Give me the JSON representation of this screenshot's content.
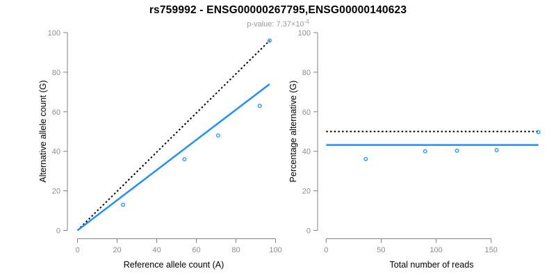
{
  "header": {
    "title": "rs759992 - ENSG00000267795,ENSG00000140623",
    "pvalue_text": "p-value: 7.37×10",
    "pvalue_exponent": "-4"
  },
  "colors": {
    "accent_blue": "#1E90FF",
    "dotted_black": "#000000",
    "axis_line_gray": "#808080",
    "tick_label_gray": "#8c8c8c",
    "axis_title_black": "#000000",
    "subtitle_gray": "#9a9a9a"
  },
  "chart_data": [
    {
      "type": "scatter",
      "name": "allele-counts-plot",
      "xlabel": "Reference allele count (A)",
      "ylabel": "Alternative allele count (G)",
      "xlim": [
        0,
        100
      ],
      "ylim": [
        0,
        100
      ],
      "xticks": [
        0,
        20,
        40,
        60,
        80,
        100
      ],
      "yticks": [
        0,
        20,
        40,
        60,
        80,
        100
      ],
      "grid": false,
      "legend": null,
      "marker": "open-circle",
      "points": [
        [
          23,
          13
        ],
        [
          54,
          36
        ],
        [
          71,
          48
        ],
        [
          92,
          63
        ],
        [
          97,
          96
        ]
      ],
      "lines": [
        {
          "name": "identity-line",
          "style": "dotted",
          "color": "#000000",
          "from": [
            0,
            0
          ],
          "to": [
            97,
            96
          ]
        },
        {
          "name": "fit-line",
          "style": "solid",
          "color": "#1E90FF",
          "from": [
            0,
            0
          ],
          "to": [
            97,
            74
          ]
        }
      ]
    },
    {
      "type": "scatter",
      "name": "percentage-alternative-plot",
      "xlabel": "Total number of reads",
      "ylabel": "Percentage alternative (G)",
      "xlim": [
        0,
        193
      ],
      "ylim": [
        0,
        100
      ],
      "xticks": [
        0,
        50,
        100,
        150
      ],
      "yticks": [
        0,
        20,
        40,
        60,
        80,
        100
      ],
      "grid": false,
      "legend": null,
      "marker": "open-circle",
      "points": [
        [
          36,
          36.1
        ],
        [
          90,
          40
        ],
        [
          119,
          40.3
        ],
        [
          155,
          40.6
        ],
        [
          193,
          49.7
        ]
      ],
      "lines": [
        {
          "name": "expected-50pct-line",
          "style": "dotted",
          "color": "#000000",
          "from": [
            0,
            50
          ],
          "to": [
            193,
            50
          ]
        },
        {
          "name": "observed-mean-line",
          "style": "solid",
          "color": "#1E90FF",
          "from": [
            0,
            43.2
          ],
          "to": [
            193,
            43.2
          ]
        }
      ]
    }
  ]
}
